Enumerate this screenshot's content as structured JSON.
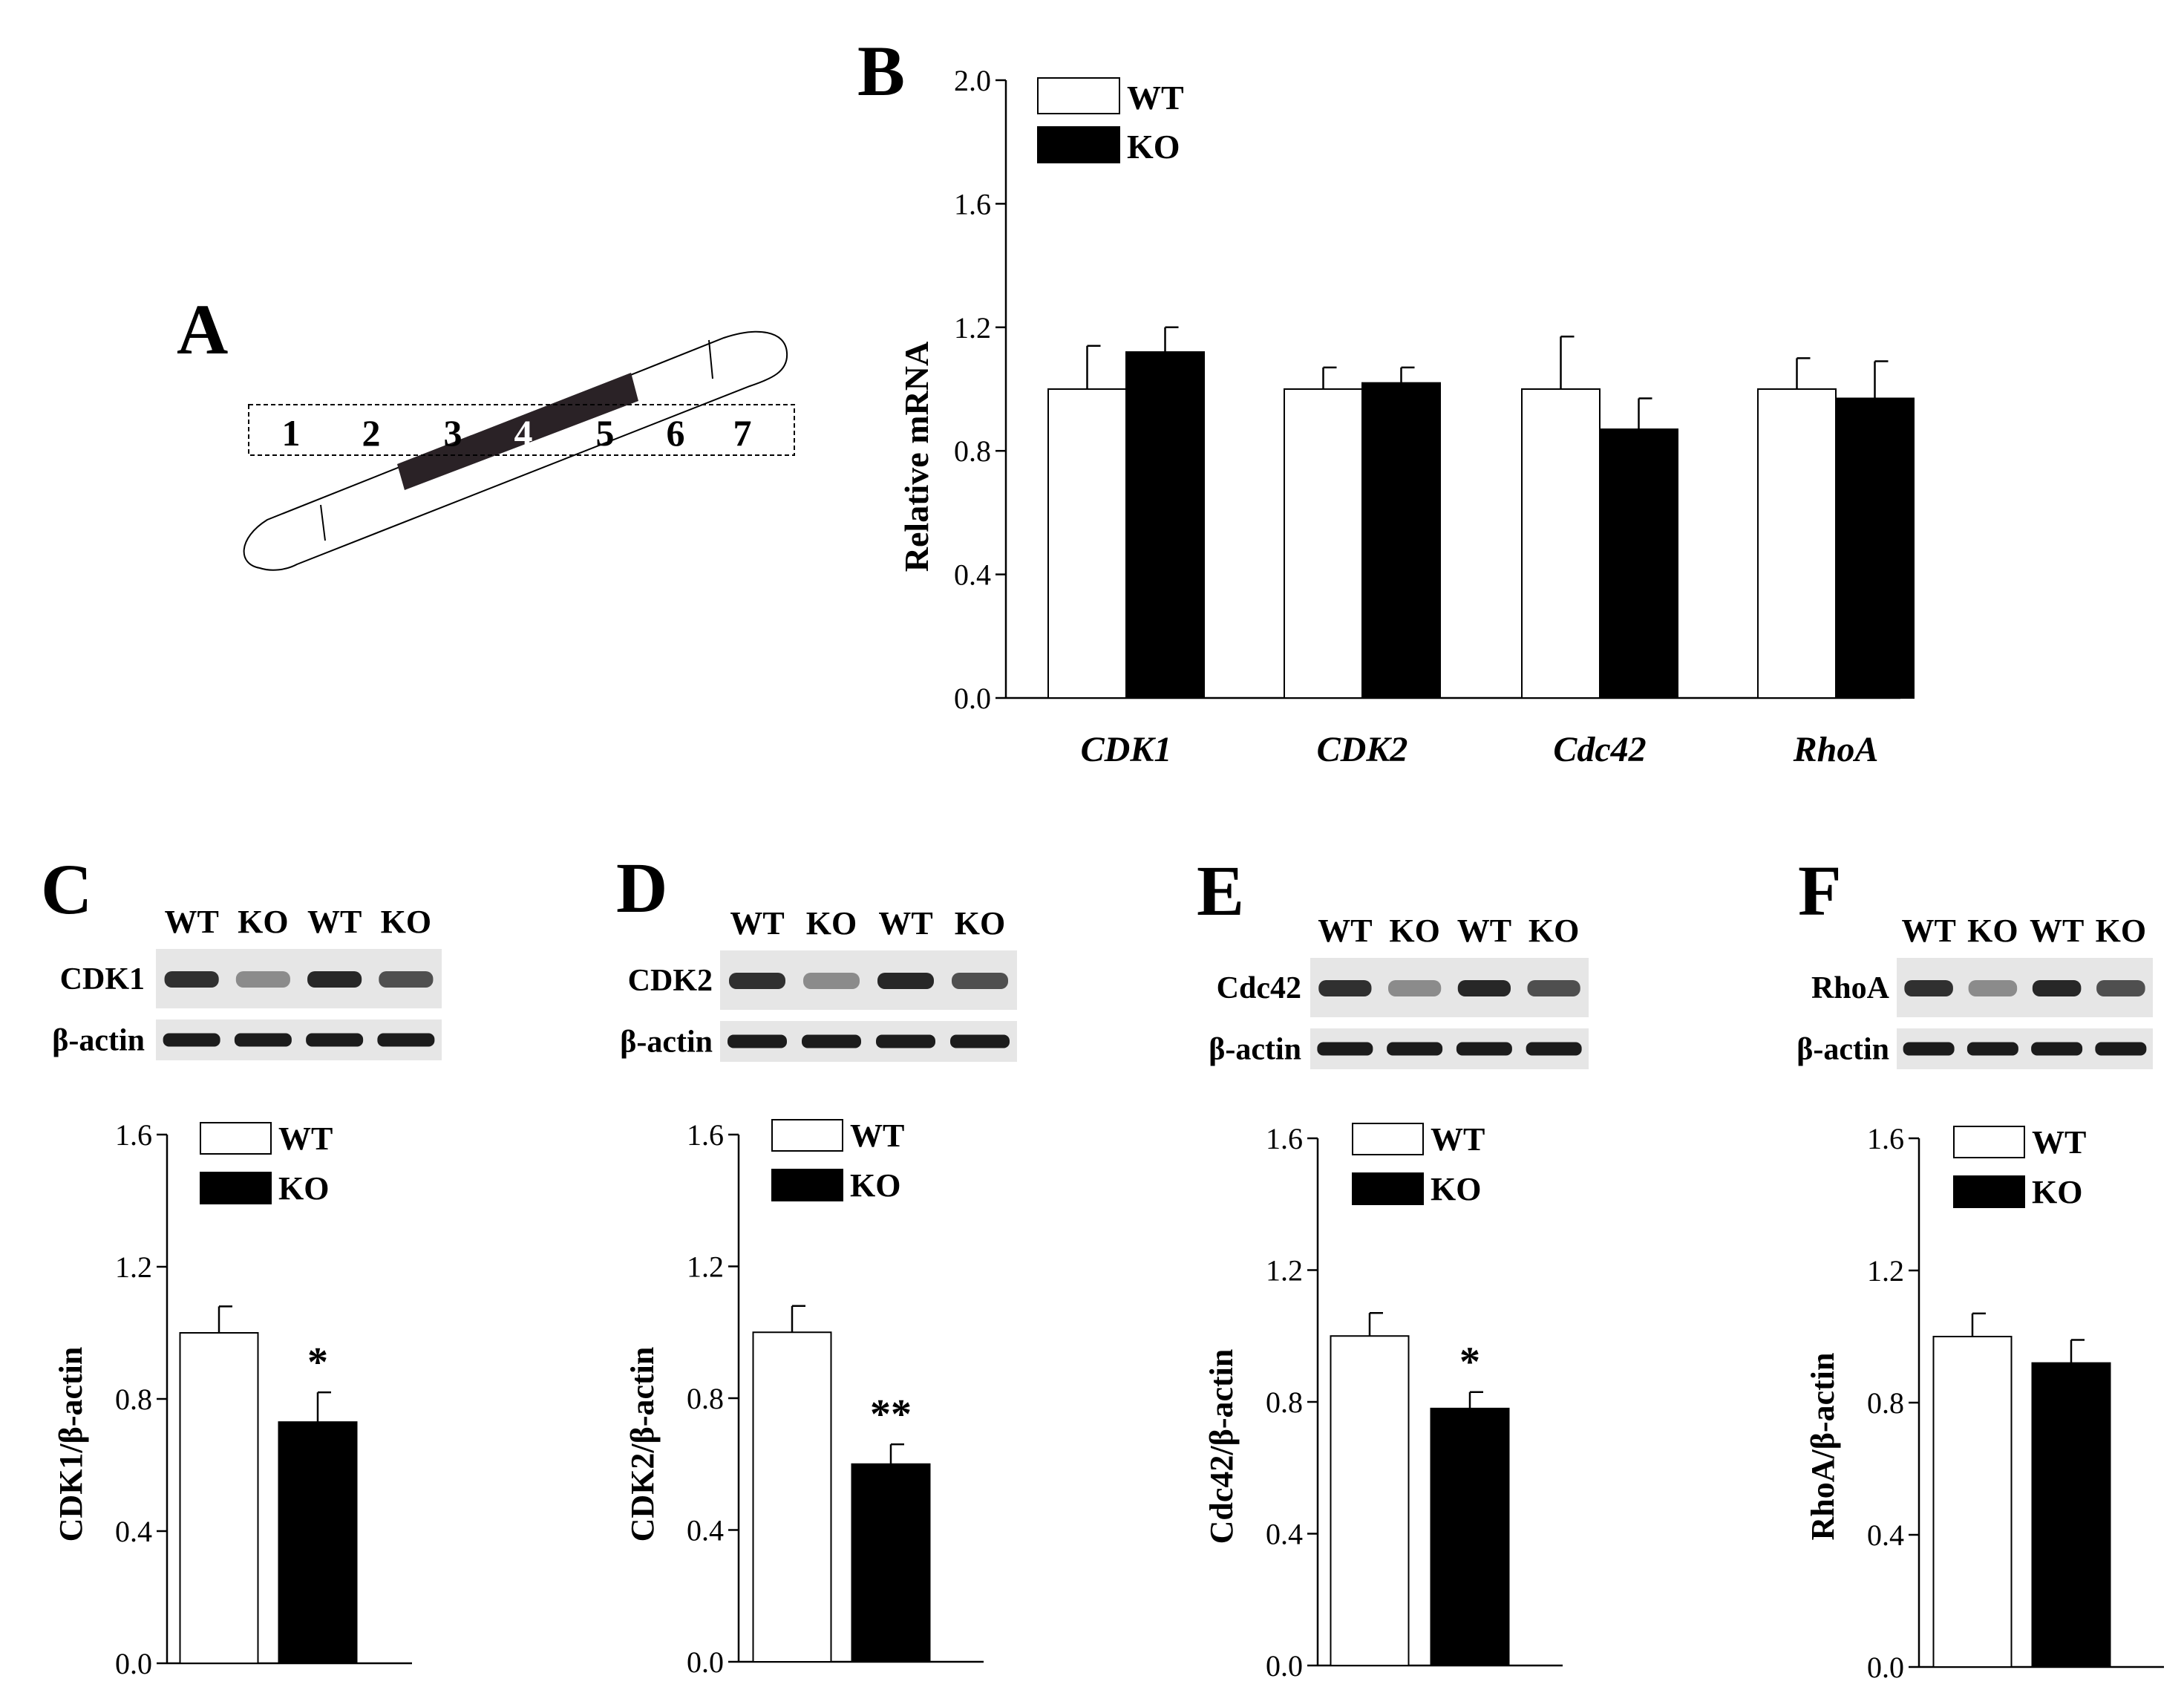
{
  "colors": {
    "wt_fill": "#ffffff",
    "ko_fill": "#000000",
    "stroke": "#000000",
    "band": "#1c1c1c",
    "blot_bg": "#e6e6e6"
  },
  "panel_a": {
    "letter": "A",
    "segments": [
      "1",
      "2",
      "3",
      "4",
      "5",
      "6",
      "7"
    ]
  },
  "chart_data": [
    {
      "id": "B",
      "letter": "B",
      "type": "bar",
      "title": "",
      "xlabel": "",
      "ylabel": "Relative mRNA",
      "ylim": [
        0,
        2.0
      ],
      "yticks": [
        "0.0",
        "0.4",
        "0.8",
        "1.2",
        "1.6",
        "2.0"
      ],
      "categories": [
        "CDK1",
        "CDK2",
        "Cdc42",
        "RhoA"
      ],
      "italic_categories": true,
      "series": [
        {
          "name": "WT",
          "color": "#ffffff",
          "values": [
            1.0,
            1.0,
            1.0,
            1.0
          ],
          "errors": [
            0.14,
            0.07,
            0.17,
            0.1
          ]
        },
        {
          "name": "KO",
          "color": "#000000",
          "values": [
            1.12,
            1.02,
            0.87,
            0.97
          ],
          "errors": [
            0.08,
            0.05,
            0.1,
            0.12
          ]
        }
      ],
      "legend": [
        "WT",
        "KO"
      ],
      "legend_position": "top-left",
      "significance": [
        "",
        "",
        "",
        ""
      ]
    },
    {
      "id": "C",
      "letter": "C",
      "type": "bar",
      "ylabel": "CDK1/β-actin",
      "ylim": [
        0,
        1.6
      ],
      "yticks": [
        "0.0",
        "0.4",
        "0.8",
        "1.2",
        "1.6"
      ],
      "series": [
        {
          "name": "WT",
          "color": "#ffffff",
          "value": 1.0,
          "error": 0.08
        },
        {
          "name": "KO",
          "color": "#000000",
          "value": 0.73,
          "error": 0.09
        }
      ],
      "significance": "*",
      "legend": [
        "WT",
        "KO"
      ],
      "blot": {
        "lanes": [
          "WT",
          "KO",
          "WT",
          "KO"
        ],
        "rows": [
          "CDK1",
          "β-actin"
        ]
      }
    },
    {
      "id": "D",
      "letter": "D",
      "type": "bar",
      "ylabel": "CDK2/β-actin",
      "ylim": [
        0,
        1.6
      ],
      "yticks": [
        "0.0",
        "0.4",
        "0.8",
        "1.2",
        "1.6"
      ],
      "series": [
        {
          "name": "WT",
          "color": "#ffffff",
          "value": 1.0,
          "error": 0.08
        },
        {
          "name": "KO",
          "color": "#000000",
          "value": 0.6,
          "error": 0.06
        }
      ],
      "significance": "**",
      "legend": [
        "WT",
        "KO"
      ],
      "blot": {
        "lanes": [
          "WT",
          "KO",
          "WT",
          "KO"
        ],
        "rows": [
          "CDK2",
          "β-actin"
        ]
      }
    },
    {
      "id": "E",
      "letter": "E",
      "type": "bar",
      "ylabel": "Cdc42/β-actin",
      "ylim": [
        0,
        1.6
      ],
      "yticks": [
        "0.0",
        "0.4",
        "0.8",
        "1.2",
        "1.6"
      ],
      "series": [
        {
          "name": "WT",
          "color": "#ffffff",
          "value": 1.0,
          "error": 0.07
        },
        {
          "name": "KO",
          "color": "#000000",
          "value": 0.78,
          "error": 0.05
        }
      ],
      "significance": "*",
      "legend": [
        "WT",
        "KO"
      ],
      "blot": {
        "lanes": [
          "WT",
          "KO",
          "WT",
          "KO"
        ],
        "rows": [
          "Cdc42",
          "β-actin"
        ]
      }
    },
    {
      "id": "F",
      "letter": "F",
      "type": "bar",
      "ylabel": "RhoA/β-actin",
      "ylim": [
        0,
        1.6
      ],
      "yticks": [
        "0.0",
        "0.4",
        "0.8",
        "1.2",
        "1.6"
      ],
      "series": [
        {
          "name": "WT",
          "color": "#ffffff",
          "value": 1.0,
          "error": 0.07
        },
        {
          "name": "KO",
          "color": "#000000",
          "value": 0.92,
          "error": 0.07
        }
      ],
      "significance": "",
      "legend": [
        "WT",
        "KO"
      ],
      "blot": {
        "lanes": [
          "WT",
          "KO",
          "WT",
          "KO"
        ],
        "rows": [
          "RhoA",
          "β-actin"
        ]
      }
    }
  ]
}
